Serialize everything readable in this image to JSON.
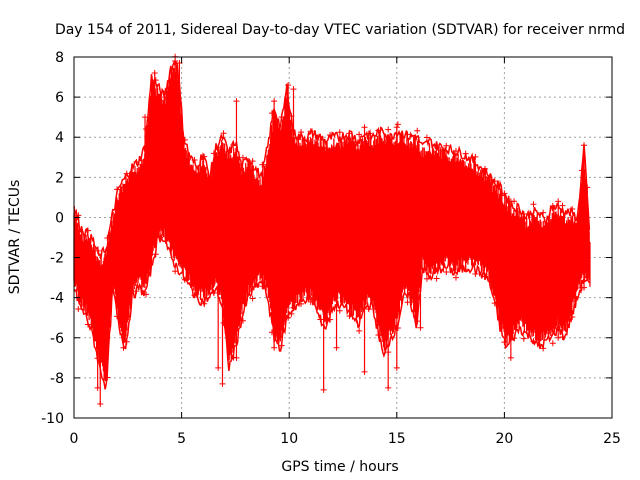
{
  "chart_data": {
    "type": "line",
    "title": "Day 154 of 2011, Sidereal Day-to-day VTEC variation (SDTVAR) for receiver nrmd",
    "xlabel": "GPS time / hours",
    "ylabel": "SDTVAR / TECUs",
    "xlim": [
      0,
      25
    ],
    "ylim": [
      -10,
      8
    ],
    "xticks": [
      0,
      5,
      10,
      15,
      20,
      25
    ],
    "yticks": [
      -10,
      -8,
      -6,
      -4,
      -2,
      0,
      2,
      4,
      6,
      8
    ],
    "grid": true,
    "series_color": "#ff0000",
    "envelope": {
      "x": [
        0.0,
        0.3,
        0.6,
        0.9,
        1.2,
        1.5,
        1.8,
        2.1,
        2.4,
        2.7,
        3.0,
        3.3,
        3.6,
        3.9,
        4.2,
        4.5,
        4.8,
        5.1,
        5.4,
        5.7,
        6.0,
        6.3,
        6.6,
        6.9,
        7.2,
        7.5,
        7.8,
        8.1,
        8.4,
        8.7,
        9.0,
        9.3,
        9.6,
        9.9,
        10.2,
        10.5,
        10.8,
        11.1,
        11.4,
        11.7,
        12.0,
        12.3,
        12.6,
        12.9,
        13.2,
        13.5,
        13.8,
        14.1,
        14.4,
        14.7,
        15.0,
        15.3,
        15.6,
        15.9,
        16.2,
        16.5,
        16.8,
        17.1,
        17.4,
        17.7,
        18.0,
        18.3,
        18.6,
        18.9,
        19.2,
        19.5,
        19.8,
        20.1,
        20.4,
        20.7,
        21.0,
        21.3,
        21.6,
        21.9,
        22.2,
        22.5,
        22.8,
        23.1,
        23.4,
        23.7,
        24.0
      ],
      "upper": [
        0.5,
        -0.5,
        -0.8,
        -1.2,
        -2.0,
        -1.5,
        0.2,
        1.5,
        2.0,
        2.5,
        2.8,
        3.5,
        7.0,
        6.5,
        6.0,
        7.5,
        7.8,
        4.0,
        3.0,
        2.5,
        3.2,
        2.0,
        3.5,
        4.0,
        3.2,
        3.8,
        2.5,
        3.0,
        2.5,
        2.0,
        3.5,
        5.5,
        4.5,
        6.5,
        4.2,
        4.0,
        4.0,
        4.2,
        4.0,
        3.8,
        4.0,
        4.0,
        4.1,
        4.2,
        3.8,
        4.2,
        4.0,
        4.2,
        4.3,
        4.0,
        4.3,
        4.2,
        4.0,
        4.1,
        3.5,
        3.8,
        3.6,
        3.5,
        3.4,
        3.3,
        3.2,
        3.0,
        2.8,
        2.5,
        2.2,
        1.8,
        1.5,
        1.0,
        0.5,
        0.5,
        0.0,
        0.3,
        0.2,
        -0.2,
        0.5,
        0.5,
        0.3,
        0.2,
        0.0,
        3.5,
        -1.5
      ],
      "lower": [
        -3.5,
        -4.5,
        -5.0,
        -6.0,
        -7.5,
        -8.5,
        -3.5,
        -5.5,
        -6.5,
        -4.0,
        -3.5,
        -3.8,
        -2.5,
        -1.0,
        -1.0,
        -2.0,
        -2.5,
        -3.0,
        -3.5,
        -4.0,
        -4.2,
        -4.0,
        -3.5,
        -4.5,
        -7.5,
        -6.5,
        -5.0,
        -4.0,
        -3.5,
        -3.2,
        -4.0,
        -6.0,
        -6.5,
        -5.0,
        -4.5,
        -4.3,
        -4.0,
        -4.2,
        -5.0,
        -5.5,
        -4.5,
        -4.3,
        -4.5,
        -4.8,
        -5.5,
        -4.5,
        -4.3,
        -5.5,
        -7.0,
        -6.0,
        -5.5,
        -4.0,
        -4.0,
        -5.5,
        -2.5,
        -3.0,
        -2.8,
        -2.5,
        -2.5,
        -2.8,
        -2.6,
        -2.5,
        -2.5,
        -2.8,
        -3.0,
        -4.0,
        -5.5,
        -6.5,
        -6.0,
        -5.5,
        -5.8,
        -6.0,
        -6.5,
        -6.2,
        -6.0,
        -5.5,
        -6.0,
        -5.0,
        -4.0,
        -3.0,
        -3.5
      ]
    },
    "spikes": [
      {
        "x": 1.22,
        "lo": -9.3,
        "hi": -3.5
      },
      {
        "x": 1.1,
        "lo": -8.5,
        "hi": -4.0
      },
      {
        "x": 2.3,
        "lo": -6.5,
        "hi": 1.5
      },
      {
        "x": 3.3,
        "lo": -1.0,
        "hi": 5.0
      },
      {
        "x": 3.75,
        "lo": 0.0,
        "hi": 7.2
      },
      {
        "x": 4.0,
        "lo": -1.0,
        "hi": 6.0
      },
      {
        "x": 4.7,
        "lo": 1.0,
        "hi": 7.8
      },
      {
        "x": 4.9,
        "lo": 2.0,
        "hi": 7.7
      },
      {
        "x": 6.7,
        "lo": -7.5,
        "hi": 3.5
      },
      {
        "x": 6.9,
        "lo": -8.3,
        "hi": 2.0
      },
      {
        "x": 7.55,
        "lo": -7.0,
        "hi": 5.8
      },
      {
        "x": 9.3,
        "lo": -6.5,
        "hi": 5.8
      },
      {
        "x": 9.95,
        "lo": -5.0,
        "hi": 6.6
      },
      {
        "x": 10.2,
        "lo": -4.5,
        "hi": 6.4
      },
      {
        "x": 11.6,
        "lo": -8.6,
        "hi": 3.5
      },
      {
        "x": 12.2,
        "lo": -6.5,
        "hi": 3.5
      },
      {
        "x": 13.5,
        "lo": -7.7,
        "hi": 4.5
      },
      {
        "x": 14.6,
        "lo": -8.5,
        "hi": 4.0
      },
      {
        "x": 15.0,
        "lo": -7.5,
        "hi": 4.5
      },
      {
        "x": 16.1,
        "lo": -5.5,
        "hi": 3.0
      },
      {
        "x": 19.3,
        "lo": -3.0,
        "hi": 2.0
      },
      {
        "x": 20.3,
        "lo": -7.0,
        "hi": 0.8
      },
      {
        "x": 22.5,
        "lo": -6.0,
        "hi": 0.8
      },
      {
        "x": 23.7,
        "lo": -3.5,
        "hi": 3.6
      },
      {
        "x": 23.85,
        "lo": -3.0,
        "hi": 1.5
      }
    ]
  }
}
